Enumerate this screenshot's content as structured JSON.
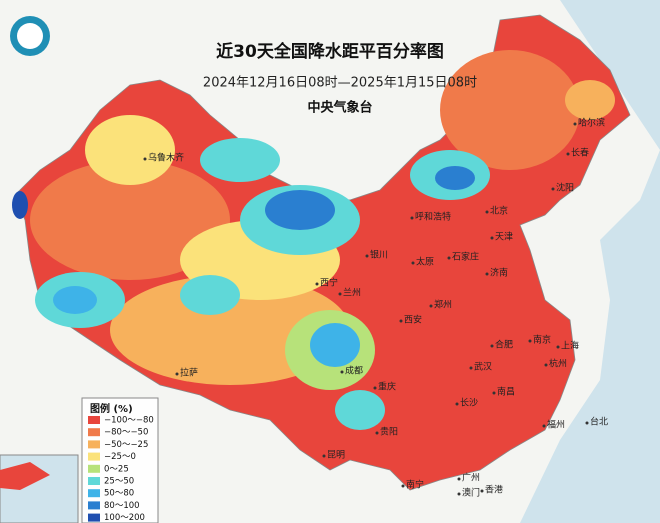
{
  "header": {
    "title": "近30天全国降水距平百分率图",
    "subtitle": "2024年12月16日08时—2025年1月15日08时",
    "agency": "中央气象台"
  },
  "cities": [
    {
      "name": "乌鲁木齐",
      "pos": "148,158"
    },
    {
      "name": "拉萨",
      "pos": "180,373"
    },
    {
      "name": "西宁",
      "pos": "320,283"
    },
    {
      "name": "兰州",
      "pos": "343,293"
    },
    {
      "name": "银川",
      "pos": "370,255"
    },
    {
      "name": "呼和浩特",
      "pos": "415,217"
    },
    {
      "name": "北京",
      "pos": "490,211"
    },
    {
      "name": "天津",
      "pos": "495,237"
    },
    {
      "name": "石家庄",
      "pos": "452,257"
    },
    {
      "name": "太原",
      "pos": "416,262"
    },
    {
      "name": "济南",
      "pos": "490,273"
    },
    {
      "name": "郑州",
      "pos": "434,305"
    },
    {
      "name": "西安",
      "pos": "404,320"
    },
    {
      "name": "成都",
      "pos": "345,371"
    },
    {
      "name": "重庆",
      "pos": "378,387"
    },
    {
      "name": "贵阳",
      "pos": "380,432"
    },
    {
      "name": "昆明",
      "pos": "327,455"
    },
    {
      "name": "武汉",
      "pos": "474,367"
    },
    {
      "name": "长沙",
      "pos": "460,403"
    },
    {
      "name": "南昌",
      "pos": "497,392"
    },
    {
      "name": "合肥",
      "pos": "495,345"
    },
    {
      "name": "南京",
      "pos": "533,340"
    },
    {
      "name": "上海",
      "pos": "561,346"
    },
    {
      "name": "杭州",
      "pos": "549,364"
    },
    {
      "name": "福州",
      "pos": "547,425"
    },
    {
      "name": "台北",
      "pos": "590,422"
    },
    {
      "name": "广州",
      "pos": "462,478"
    },
    {
      "name": "南宁",
      "pos": "406,485"
    },
    {
      "name": "澳门",
      "pos": "462,493"
    },
    {
      "name": "香港",
      "pos": "485,490"
    },
    {
      "name": "哈尔滨",
      "pos": "578,123"
    },
    {
      "name": "长春",
      "pos": "571,153"
    },
    {
      "name": "沈阳",
      "pos": "556,188"
    }
  ],
  "legend": {
    "title": "图例 (%)",
    "items": [
      {
        "label": "−100～−80",
        "color": "#e8453c"
      },
      {
        "label": "−80～−50",
        "color": "#f07a4a"
      },
      {
        "label": "−50～−25",
        "color": "#f7b15c"
      },
      {
        "label": "−25～0",
        "color": "#fbe27a"
      },
      {
        "label": "0～25",
        "color": "#b7e27a"
      },
      {
        "label": "25～50",
        "color": "#5fd8d8"
      },
      {
        "label": "50～80",
        "color": "#3eb3e8"
      },
      {
        "label": "80～100",
        "color": "#2a7fd0"
      },
      {
        "label": "100～200",
        "color": "#1f4fb0"
      }
    ]
  }
}
